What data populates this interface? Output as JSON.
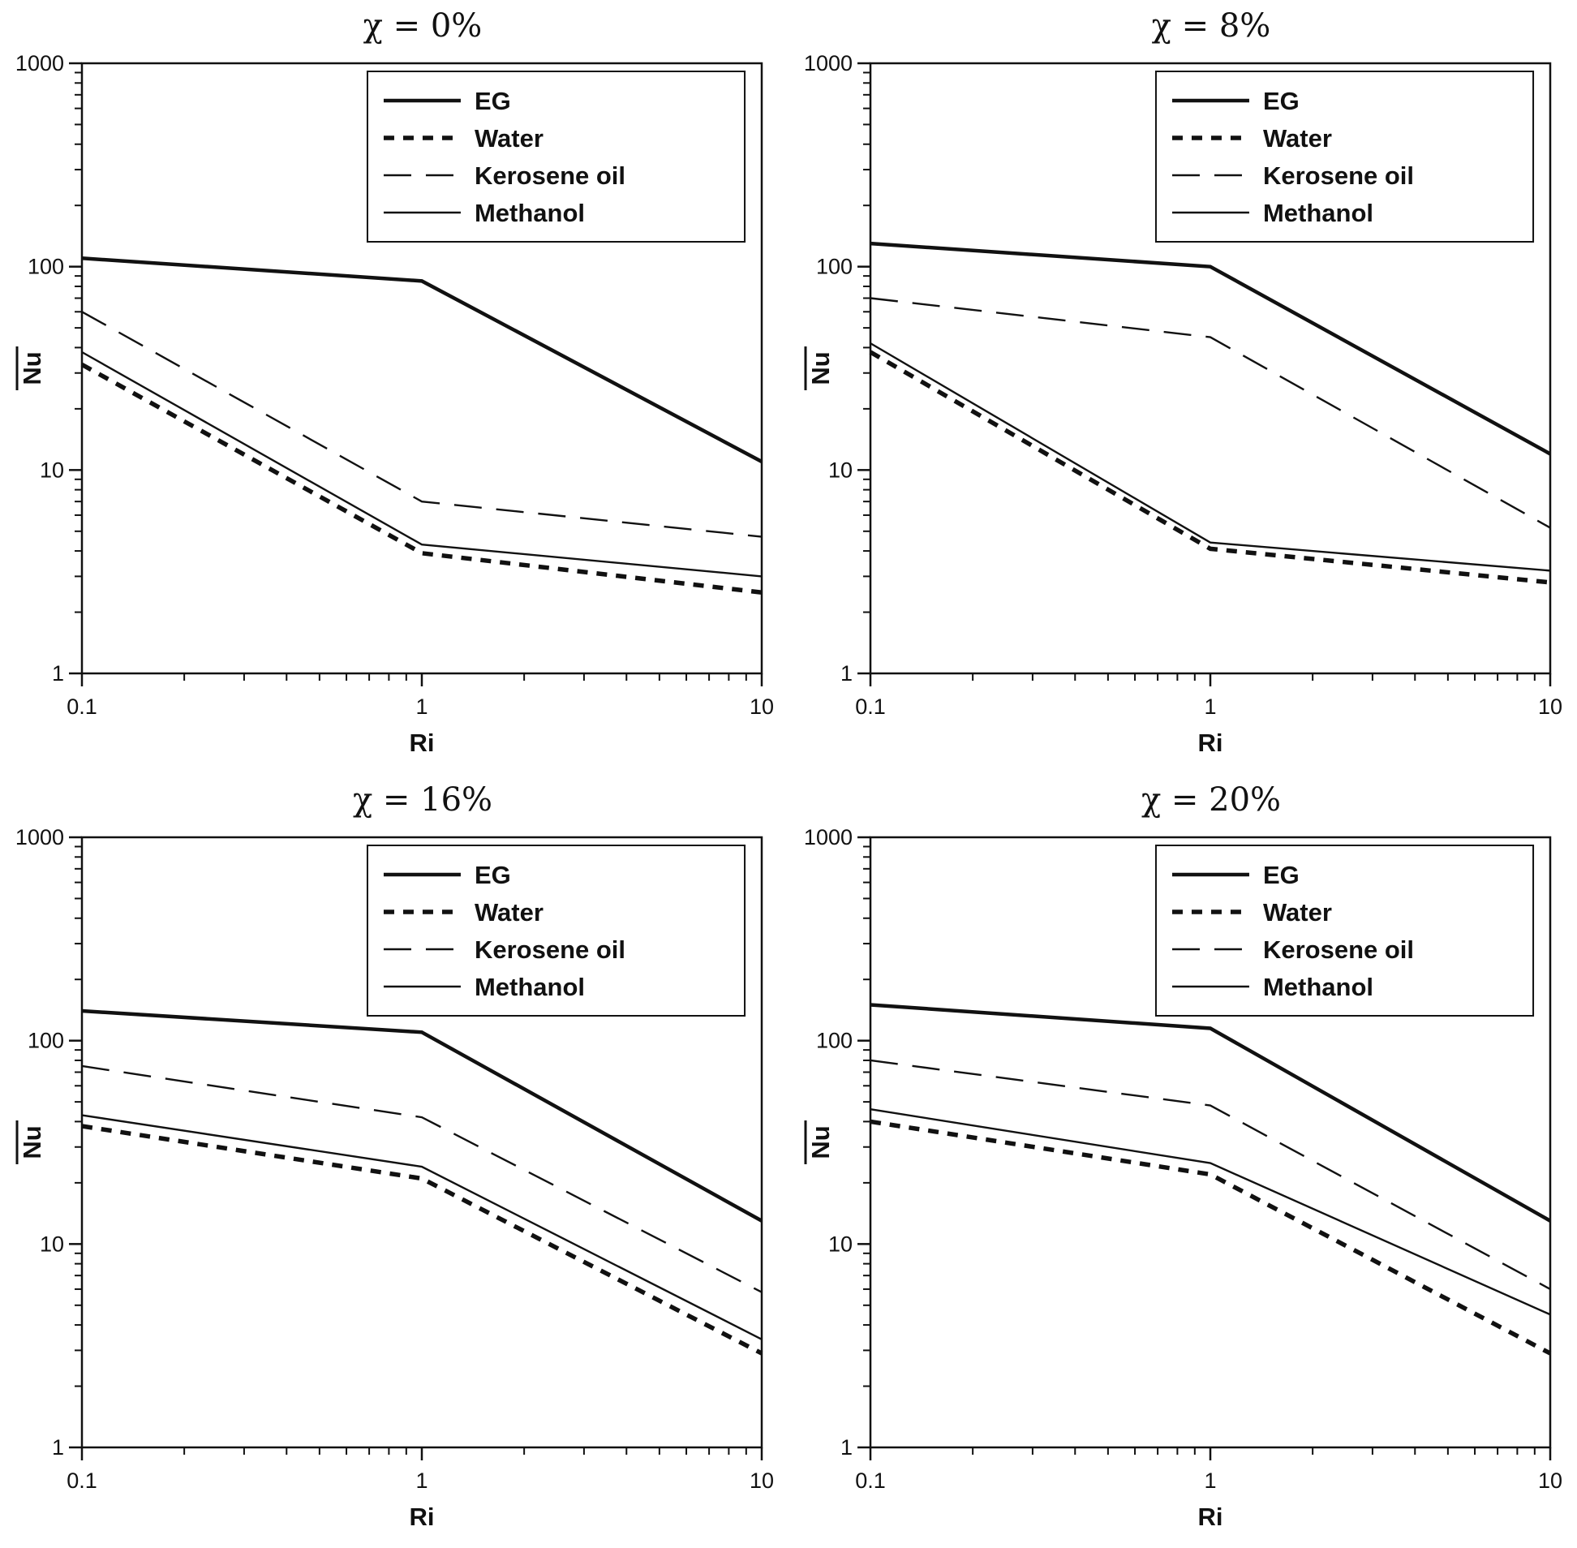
{
  "page": {
    "background": "#ffffff",
    "line_color": "#111111"
  },
  "axis": {
    "xlabel": "Ri",
    "ylabel": "Nu",
    "xtick_labels": [
      "0.1",
      "1",
      "10"
    ],
    "xtick_values": [
      0.1,
      1,
      10
    ],
    "ytick_labels": [
      "1",
      "10",
      "100",
      "1000"
    ],
    "ytick_values": [
      1,
      10,
      100,
      1000
    ]
  },
  "legend": {
    "entries": [
      "EG",
      "Water",
      "Kerosene oil",
      "Methanol"
    ]
  },
  "line_styles": {
    "EG": {
      "w": 4.5,
      "dash": ""
    },
    "Water": {
      "w": 5.5,
      "dash": "13 11"
    },
    "Kerosene oil": {
      "w": 2.4,
      "dash": "34 18"
    },
    "Methanol": {
      "w": 2.4,
      "dash": ""
    }
  },
  "chart_data": [
    {
      "type": "line",
      "title": "χ = 0%",
      "xlabel": "Ri",
      "ylabel": "Nu",
      "xscale": "log",
      "yscale": "log",
      "xlim": [
        0.1,
        10
      ],
      "ylim": [
        1,
        1000
      ],
      "grid": false,
      "legend_position": "upper right",
      "x": [
        0.1,
        1,
        10
      ],
      "series": [
        {
          "name": "EG",
          "values": [
            110,
            85,
            11
          ]
        },
        {
          "name": "Water",
          "values": [
            33,
            3.9,
            2.5
          ]
        },
        {
          "name": "Kerosene oil",
          "values": [
            60,
            7,
            4.7
          ]
        },
        {
          "name": "Methanol",
          "values": [
            38,
            4.3,
            3.0
          ]
        }
      ]
    },
    {
      "type": "line",
      "title": "χ = 8%",
      "xlabel": "Ri",
      "ylabel": "Nu",
      "xscale": "log",
      "yscale": "log",
      "xlim": [
        0.1,
        10
      ],
      "ylim": [
        1,
        1000
      ],
      "grid": false,
      "legend_position": "upper right",
      "x": [
        0.1,
        1,
        10
      ],
      "series": [
        {
          "name": "EG",
          "values": [
            130,
            100,
            12
          ]
        },
        {
          "name": "Water",
          "values": [
            38,
            4.1,
            2.8
          ]
        },
        {
          "name": "Kerosene oil",
          "values": [
            70,
            45,
            5.2
          ]
        },
        {
          "name": "Methanol",
          "values": [
            42,
            4.4,
            3.2
          ]
        }
      ]
    },
    {
      "type": "line",
      "title": "χ = 16%",
      "xlabel": "Ri",
      "ylabel": "Nu",
      "xscale": "log",
      "yscale": "log",
      "xlim": [
        0.1,
        10
      ],
      "ylim": [
        1,
        1000
      ],
      "grid": false,
      "legend_position": "upper right",
      "x": [
        0.1,
        1,
        10
      ],
      "series": [
        {
          "name": "EG",
          "values": [
            140,
            110,
            13
          ]
        },
        {
          "name": "Water",
          "values": [
            38,
            21,
            2.9
          ]
        },
        {
          "name": "Kerosene oil",
          "values": [
            75,
            42,
            5.8
          ]
        },
        {
          "name": "Methanol",
          "values": [
            43,
            24,
            3.4
          ]
        }
      ]
    },
    {
      "type": "line",
      "title": "χ = 20%",
      "xlabel": "Ri",
      "ylabel": "Nu",
      "xscale": "log",
      "yscale": "log",
      "xlim": [
        0.1,
        10
      ],
      "ylim": [
        1,
        1000
      ],
      "grid": false,
      "legend_position": "upper right",
      "x": [
        0.1,
        1,
        10
      ],
      "series": [
        {
          "name": "EG",
          "values": [
            150,
            115,
            13
          ]
        },
        {
          "name": "Water",
          "values": [
            40,
            22,
            2.9
          ]
        },
        {
          "name": "Kerosene oil",
          "values": [
            80,
            48,
            6.0
          ]
        },
        {
          "name": "Methanol",
          "values": [
            46,
            25,
            4.5
          ]
        }
      ]
    }
  ]
}
